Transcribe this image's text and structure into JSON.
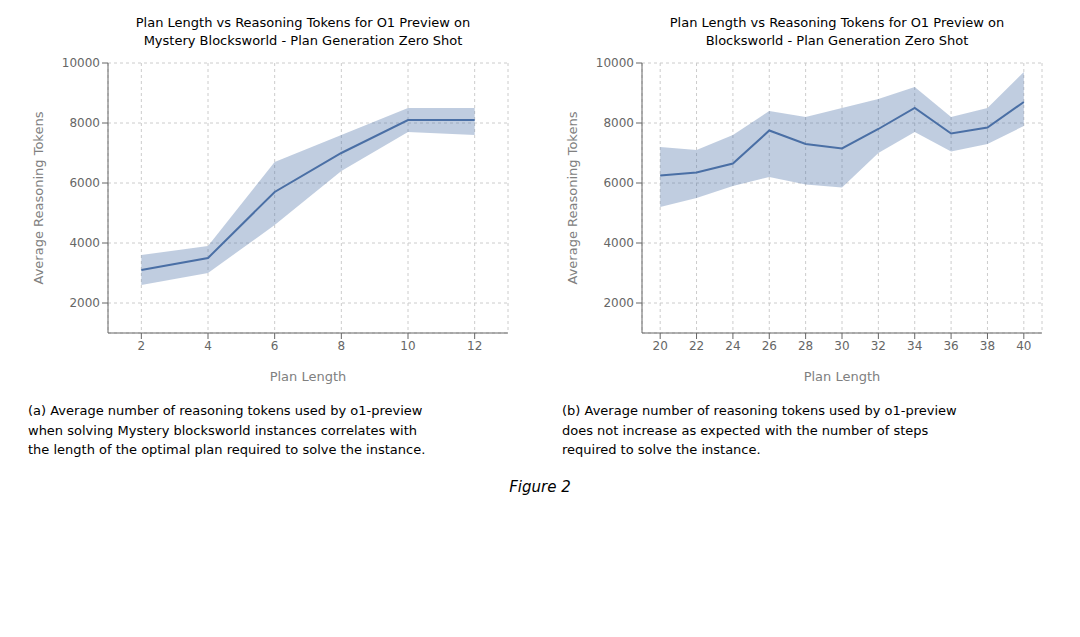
{
  "caption": "Figure 2",
  "chart_data": [
    {
      "type": "line",
      "title": "Plan Length vs Reasoning Tokens for O1 Preview on\nMystery Blocksworld - Plan Generation Zero Shot",
      "x_label": "Plan Length",
      "y_label": "Average Reasoning Tokens",
      "annotations": [
        "(a) Average number of reasoning tokens used by o1-preview\nwhen solving Mystery blocksworld instances correlates with\nthe length of the optimal plan required to solve the instance."
      ],
      "x": [
        2,
        4,
        6,
        8,
        10,
        12
      ],
      "values": [
        3100,
        3500,
        5700,
        7000,
        8100,
        8100
      ],
      "lower": [
        2600,
        3000,
        4600,
        6400,
        7700,
        7600
      ],
      "upper": [
        3600,
        3900,
        6700,
        7600,
        8500,
        8500
      ],
      "color": "#4a6fa5",
      "xlim": [
        1,
        13
      ],
      "ylim": [
        1000,
        10000
      ],
      "xticks": [
        2,
        4,
        6,
        8,
        10,
        12
      ],
      "yticks": [
        2000,
        4000,
        6000,
        8000,
        10000
      ],
      "grid": true
    },
    {
      "type": "line",
      "title": "Plan Length vs Reasoning Tokens for O1 Preview on\nBlocksworld - Plan Generation Zero Shot",
      "x_label": "Plan Length",
      "y_label": "Average Reasoning Tokens",
      "annotations": [
        "(b) Average number of reasoning tokens used by o1-preview\ndoes not increase as expected with the number of steps\nrequired to solve the instance."
      ],
      "x": [
        20,
        22,
        24,
        26,
        28,
        30,
        32,
        34,
        36,
        38,
        40
      ],
      "values": [
        6250,
        6350,
        6650,
        7750,
        7300,
        7150,
        7800,
        8500,
        7650,
        7850,
        8700
      ],
      "lower": [
        5200,
        5500,
        5900,
        6200,
        5950,
        5850,
        7000,
        7700,
        7050,
        7300,
        7900
      ],
      "upper": [
        7200,
        7100,
        7600,
        8400,
        8200,
        8500,
        8800,
        9200,
        8200,
        8500,
        9700
      ],
      "color": "#4a6fa5",
      "xlim": [
        19,
        41
      ],
      "ylim": [
        1000,
        10000
      ],
      "xticks": [
        20,
        22,
        24,
        26,
        28,
        30,
        32,
        34,
        36,
        38,
        40
      ],
      "yticks": [
        2000,
        4000,
        6000,
        8000,
        10000
      ],
      "grid": true
    }
  ]
}
